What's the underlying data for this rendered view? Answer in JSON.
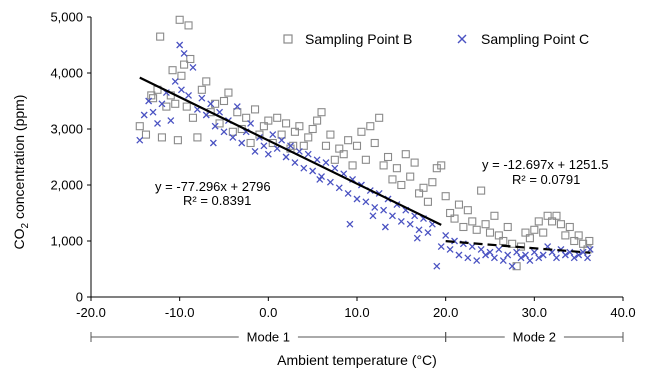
{
  "chart_data": {
    "type": "scatter",
    "title": "",
    "xlabel": "Ambient temperature (°C)",
    "ylabel_parts": {
      "pre": "CO",
      "sub": "2",
      "post": " concentration (ppm)"
    },
    "xlim": [
      -20,
      40
    ],
    "ylim": [
      0,
      5000
    ],
    "x_ticks": [
      "-20.0",
      "-10.0",
      "0.0",
      "10.0",
      "20.0",
      "30.0",
      "40.0"
    ],
    "y_ticks": [
      "0",
      "1,000",
      "2,000",
      "3,000",
      "4,000",
      "5,000"
    ],
    "grid": false,
    "legend_position": "top-right",
    "series": [
      {
        "name": "Sampling Point B",
        "marker": "open-square",
        "color": "#8a8a8a",
        "points": [
          [
            -14.5,
            3050
          ],
          [
            -13.8,
            2900
          ],
          [
            -13,
            3550
          ],
          [
            -12.5,
            3700
          ],
          [
            -12.2,
            4650
          ],
          [
            -12,
            2850
          ],
          [
            -11.5,
            3400
          ],
          [
            -11,
            3600
          ],
          [
            -10.8,
            4050
          ],
          [
            -10.5,
            3450
          ],
          [
            -10.2,
            2800
          ],
          [
            -10,
            4950
          ],
          [
            -9.8,
            3950
          ],
          [
            -9.5,
            4150
          ],
          [
            -9.2,
            3400
          ],
          [
            -9,
            4850
          ],
          [
            -8.8,
            4250
          ],
          [
            -8.5,
            3200
          ],
          [
            -8,
            2850
          ],
          [
            -7.5,
            3700
          ],
          [
            -7,
            3850
          ],
          [
            -6.5,
            3300
          ],
          [
            -6,
            3450
          ],
          [
            -5.5,
            3100
          ],
          [
            -5,
            3500
          ],
          [
            -4.5,
            3650
          ],
          [
            -4,
            2950
          ],
          [
            -3.5,
            3300
          ],
          [
            -3,
            3000
          ],
          [
            -2.5,
            3200
          ],
          [
            -2,
            2750
          ],
          [
            -1.5,
            3350
          ],
          [
            -1,
            2900
          ],
          [
            -0.5,
            3050
          ],
          [
            0,
            3150
          ],
          [
            0.5,
            2750
          ],
          [
            1,
            3200
          ],
          [
            1.5,
            2900
          ],
          [
            2,
            3100
          ],
          [
            2.5,
            2650
          ],
          [
            3,
            2950
          ],
          [
            3.5,
            3050
          ],
          [
            4,
            2700
          ],
          [
            4.5,
            2850
          ],
          [
            5,
            3000
          ],
          [
            5.5,
            3150
          ],
          [
            6,
            3300
          ],
          [
            6.5,
            2700
          ],
          [
            7,
            2900
          ],
          [
            7.5,
            2450
          ],
          [
            8,
            2650
          ],
          [
            8.5,
            2550
          ],
          [
            9,
            2800
          ],
          [
            9.5,
            2350
          ],
          [
            10,
            2700
          ],
          [
            10.5,
            2950
          ],
          [
            11,
            2450
          ],
          [
            11.5,
            3050
          ],
          [
            12,
            2750
          ],
          [
            12.5,
            3200
          ],
          [
            13,
            2350
          ],
          [
            13.5,
            2500
          ],
          [
            14,
            2100
          ],
          [
            14.5,
            2300
          ],
          [
            15,
            2000
          ],
          [
            15.5,
            2550
          ],
          [
            16,
            2150
          ],
          [
            16.5,
            2400
          ],
          [
            17,
            1850
          ],
          [
            17.5,
            1950
          ],
          [
            18,
            1700
          ],
          [
            18.5,
            2050
          ],
          [
            19,
            2300
          ],
          [
            19.5,
            2350
          ],
          [
            20,
            1800
          ],
          [
            20.5,
            1500
          ],
          [
            21,
            1400
          ],
          [
            21.5,
            1650
          ],
          [
            22,
            1250
          ],
          [
            22.5,
            1550
          ],
          [
            23,
            1350
          ],
          [
            23.5,
            1200
          ],
          [
            24,
            1900
          ],
          [
            24.5,
            1300
          ],
          [
            25,
            1150
          ],
          [
            25.5,
            1450
          ],
          [
            26,
            1100
          ],
          [
            26.5,
            1000
          ],
          [
            27,
            1250
          ],
          [
            27.5,
            950
          ],
          [
            28,
            550
          ],
          [
            28.5,
            900
          ],
          [
            29,
            1150
          ],
          [
            29.5,
            1050
          ],
          [
            30,
            1200
          ],
          [
            30.5,
            1350
          ],
          [
            31,
            1150
          ],
          [
            31.5,
            1450
          ],
          [
            32,
            1350
          ],
          [
            32.5,
            1450
          ],
          [
            33,
            1300
          ],
          [
            33.5,
            1100
          ],
          [
            34,
            1250
          ],
          [
            34.5,
            1000
          ],
          [
            35,
            1100
          ],
          [
            35.5,
            950
          ],
          [
            36,
            850
          ],
          [
            36.2,
            1000
          ],
          [
            -13.2,
            3600
          ],
          [
            2.8,
            2700
          ]
        ]
      },
      {
        "name": "Sampling Point C",
        "marker": "x",
        "color": "#4a52c2",
        "points": [
          [
            -14.5,
            2800
          ],
          [
            -14,
            3250
          ],
          [
            -13.5,
            3500
          ],
          [
            -13,
            3300
          ],
          [
            -12.5,
            3100
          ],
          [
            -12,
            3450
          ],
          [
            -11.5,
            3650
          ],
          [
            -11,
            3150
          ],
          [
            -10.5,
            3850
          ],
          [
            -10,
            4500
          ],
          [
            -9.8,
            3700
          ],
          [
            -9.5,
            4350
          ],
          [
            -9,
            3600
          ],
          [
            -8.5,
            4100
          ],
          [
            -8,
            3350
          ],
          [
            -7.5,
            3550
          ],
          [
            -7,
            3250
          ],
          [
            -6.5,
            3450
          ],
          [
            -6,
            3050
          ],
          [
            -5.5,
            3300
          ],
          [
            -5,
            2950
          ],
          [
            -4.5,
            3150
          ],
          [
            -4,
            2850
          ],
          [
            -3.5,
            3400
          ],
          [
            -3,
            2750
          ],
          [
            -2.5,
            2950
          ],
          [
            -2,
            3100
          ],
          [
            -1.5,
            2600
          ],
          [
            -1,
            2850
          ],
          [
            -0.5,
            2700
          ],
          [
            0,
            2550
          ],
          [
            0.5,
            2900
          ],
          [
            1,
            2650
          ],
          [
            1.5,
            2800
          ],
          [
            2,
            2500
          ],
          [
            2.5,
            2700
          ],
          [
            3,
            2400
          ],
          [
            3.5,
            2600
          ],
          [
            4,
            2300
          ],
          [
            4.5,
            2550
          ],
          [
            5,
            2250
          ],
          [
            5.5,
            2450
          ],
          [
            6,
            2150
          ],
          [
            6.5,
            2400
          ],
          [
            7,
            2050
          ],
          [
            7.5,
            2300
          ],
          [
            8,
            1950
          ],
          [
            8.5,
            2200
          ],
          [
            9,
            1850
          ],
          [
            9.5,
            2100
          ],
          [
            10,
            1750
          ],
          [
            10.5,
            2000
          ],
          [
            11,
            1700
          ],
          [
            11.5,
            1900
          ],
          [
            12,
            1600
          ],
          [
            12.5,
            1850
          ],
          [
            13,
            1550
          ],
          [
            13.5,
            1750
          ],
          [
            14,
            1450
          ],
          [
            14.5,
            1650
          ],
          [
            15,
            1350
          ],
          [
            15.5,
            1550
          ],
          [
            16,
            1300
          ],
          [
            16.5,
            1450
          ],
          [
            17,
            1200
          ],
          [
            17.5,
            1400
          ],
          [
            18,
            1150
          ],
          [
            18.5,
            1300
          ],
          [
            19,
            550
          ],
          [
            19.5,
            900
          ],
          [
            20,
            1100
          ],
          [
            20.5,
            850
          ],
          [
            21,
            1000
          ],
          [
            21.5,
            750
          ],
          [
            22,
            950
          ],
          [
            22.5,
            700
          ],
          [
            23,
            900
          ],
          [
            23.5,
            650
          ],
          [
            24,
            850
          ],
          [
            24.5,
            750
          ],
          [
            25,
            800
          ],
          [
            25.5,
            700
          ],
          [
            26,
            850
          ],
          [
            26.5,
            650
          ],
          [
            27,
            750
          ],
          [
            27.5,
            550
          ],
          [
            28,
            800
          ],
          [
            28.5,
            700
          ],
          [
            29,
            750
          ],
          [
            29.5,
            650
          ],
          [
            30,
            800
          ],
          [
            30.5,
            700
          ],
          [
            31,
            750
          ],
          [
            31.5,
            900
          ],
          [
            32,
            800
          ],
          [
            32.5,
            700
          ],
          [
            33,
            850
          ],
          [
            33.5,
            750
          ],
          [
            34,
            800
          ],
          [
            34.5,
            700
          ],
          [
            35,
            750
          ],
          [
            35.5,
            800
          ],
          [
            36,
            700
          ],
          [
            36.3,
            850
          ],
          [
            9.2,
            1300
          ],
          [
            13.2,
            1250
          ],
          [
            5.8,
            2100
          ],
          [
            -6.2,
            2750
          ],
          [
            11.8,
            1450
          ],
          [
            16.8,
            1050
          ]
        ]
      }
    ],
    "trendlines": [
      {
        "x_range": [
          -14.5,
          19.5
        ],
        "style": "solid",
        "equation": "y = -77.296x + 2796",
        "r2": "R² = 0.8391"
      },
      {
        "x_range": [
          20,
          36.3
        ],
        "style": "dashed",
        "equation": "y = -12.697x + 1251.5",
        "r2": "R² = 0.0791"
      }
    ],
    "modes": [
      {
        "label": "Mode 1",
        "x_range": [
          -20,
          20
        ]
      },
      {
        "label": "Mode 2",
        "x_range": [
          20,
          40
        ]
      }
    ]
  }
}
